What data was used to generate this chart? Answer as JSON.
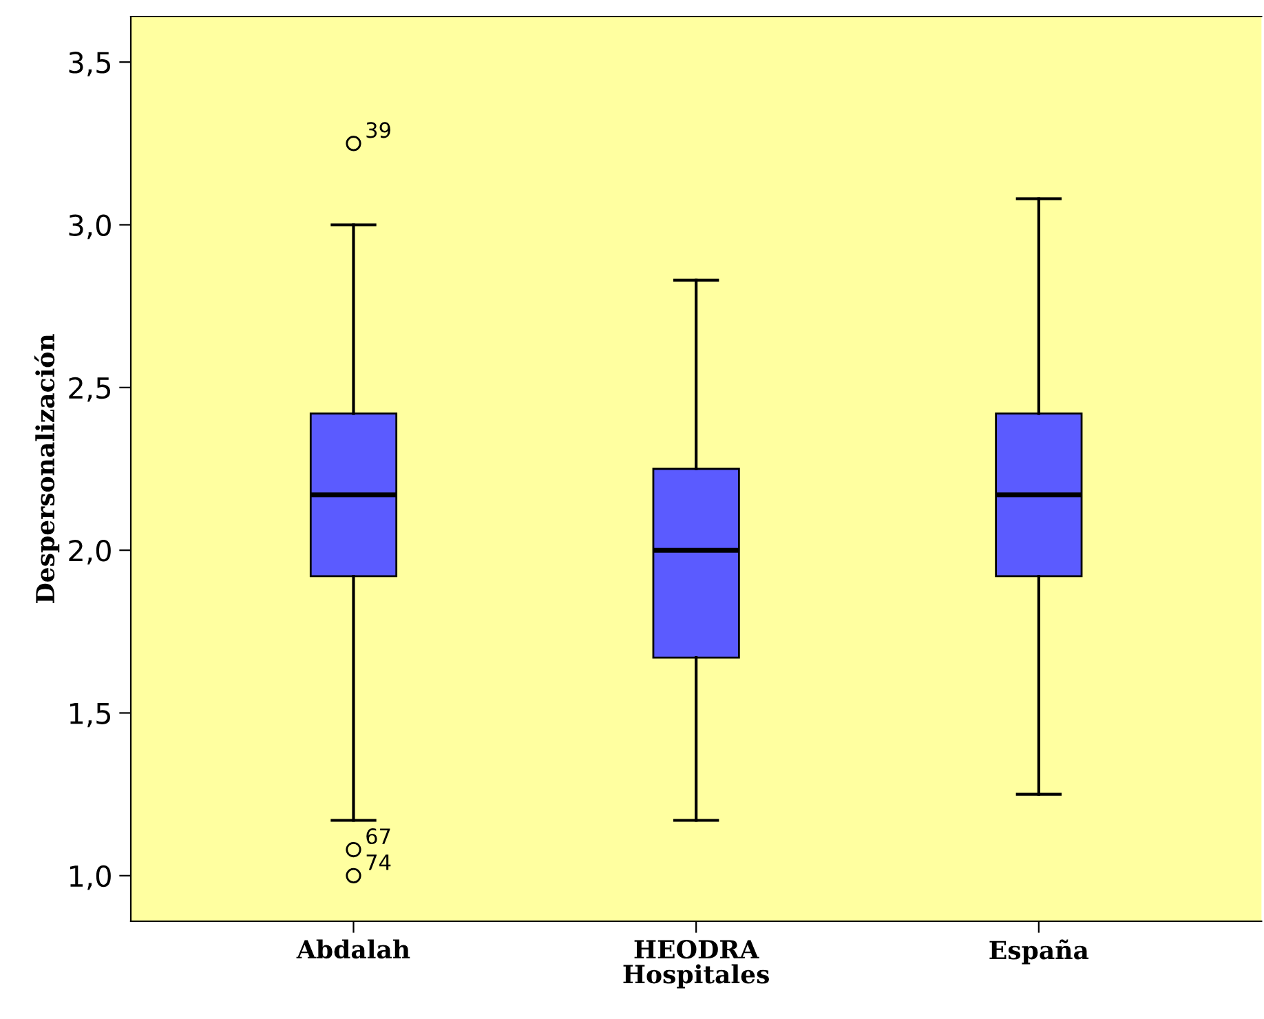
{
  "chart_data": {
    "type": "box",
    "xlabel": "Hospitales",
    "ylabel": "Despersonalización",
    "categories": [
      "Abdalah",
      "HEODRA",
      "España"
    ],
    "boxes": [
      {
        "low": 1.17,
        "q1": 1.92,
        "median": 2.17,
        "q3": 2.42,
        "high": 3.0,
        "outliers": [
          3.25,
          1.08,
          1.0
        ]
      },
      {
        "low": 1.17,
        "q1": 1.67,
        "median": 2.0,
        "q3": 2.25,
        "high": 2.83
      },
      {
        "low": 1.25,
        "q1": 1.92,
        "median": 2.17,
        "q3": 2.42,
        "high": 3.08
      }
    ],
    "color": "#5b5bff",
    "ylim": [
      0.86,
      3.64
    ],
    "yticks": [
      {
        "value": 1.0,
        "label": "1,0"
      },
      {
        "value": 1.5,
        "label": "1,5"
      },
      {
        "value": 2.0,
        "label": "2,0"
      },
      {
        "value": 2.5,
        "label": "2,5"
      },
      {
        "value": 3.0,
        "label": "3,0"
      },
      {
        "value": 3.5,
        "label": "3,5"
      }
    ],
    "grid": false,
    "legend": false,
    "annotations": [
      "39",
      "67",
      "74"
    ]
  }
}
